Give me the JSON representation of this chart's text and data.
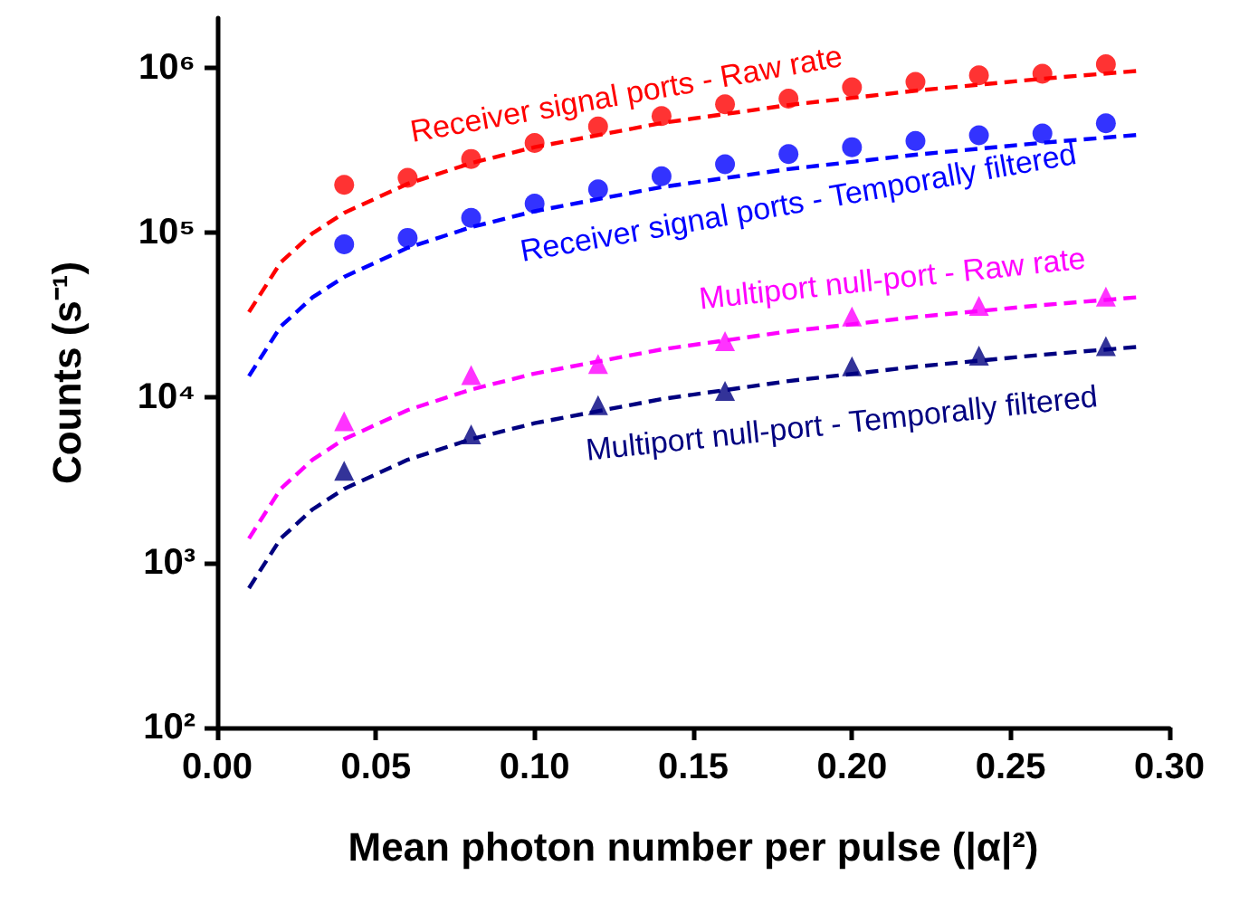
{
  "chart_data": {
    "type": "scatter",
    "xlabel": "Mean photon number per pulse (|α|²)",
    "ylabel": "Counts (s⁻¹)",
    "log": "y",
    "xlim": [
      0,
      0.3
    ],
    "xticks": [
      {
        "value": 0,
        "label": "0.00"
      },
      {
        "value": 0.05,
        "label": "0.05"
      },
      {
        "value": 0.1,
        "label": "0.10"
      },
      {
        "value": 0.15,
        "label": "0.15"
      },
      {
        "value": 0.2,
        "label": "0.20"
      },
      {
        "value": 0.25,
        "label": "0.25"
      },
      {
        "value": 0.3,
        "label": "0.30"
      }
    ],
    "ylim": [
      100,
      2000000
    ],
    "yticks": [
      {
        "value": 100,
        "label": "10²"
      },
      {
        "value": 1000,
        "label": "10³"
      },
      {
        "value": 10000,
        "label": "10⁴"
      },
      {
        "value": 100000,
        "label": "10⁵"
      },
      {
        "value": 1000000,
        "label": "10⁶"
      }
    ],
    "series": [
      {
        "marker": "circle",
        "color": "#ff0000",
        "x": [
          0.04,
          0.06,
          0.08,
          0.1,
          0.12,
          0.14,
          0.16,
          0.18,
          0.2,
          0.22,
          0.24,
          0.26,
          0.28
        ],
        "values": [
          195000,
          215000,
          280000,
          350000,
          440000,
          510000,
          600000,
          650000,
          760000,
          820000,
          900000,
          920000,
          1050000
        ]
      },
      {
        "marker": "circle",
        "color": "#0000ff",
        "x": [
          0.04,
          0.06,
          0.08,
          0.1,
          0.12,
          0.14,
          0.16,
          0.18,
          0.2,
          0.22,
          0.24,
          0.26,
          0.28
        ],
        "values": [
          85000,
          93000,
          123000,
          150000,
          183000,
          220000,
          260000,
          300000,
          330000,
          360000,
          390000,
          400000,
          460000
        ]
      },
      {
        "marker": "triangle",
        "color": "#ff00ff",
        "x": [
          0.04,
          0.08,
          0.12,
          0.16,
          0.2,
          0.24,
          0.28
        ],
        "values": [
          7200,
          13700,
          16000,
          22000,
          31000,
          36000,
          41000
        ]
      },
      {
        "marker": "triangle",
        "color": "#000080",
        "x": [
          0.04,
          0.08,
          0.12,
          0.16,
          0.2,
          0.24,
          0.28
        ],
        "values": [
          3600,
          6000,
          9000,
          11000,
          15500,
          18000,
          20500
        ]
      },
      {
        "type": "line",
        "line_style": "dashed",
        "marker": "none",
        "color": "#ff0000",
        "x": [
          0.01,
          0.02,
          0.03,
          0.04,
          0.06,
          0.08,
          0.1,
          0.14,
          0.18,
          0.22,
          0.26,
          0.29
        ],
        "values": [
          33000,
          66000,
          99000,
          132000,
          198000,
          264000,
          330000,
          462000,
          594000,
          726000,
          858000,
          957000
        ]
      },
      {
        "type": "line",
        "line_style": "dashed",
        "marker": "none",
        "color": "#0000ff",
        "x": [
          0.01,
          0.02,
          0.03,
          0.04,
          0.06,
          0.08,
          0.1,
          0.14,
          0.18,
          0.22,
          0.26,
          0.29
        ],
        "values": [
          13500,
          27000,
          40500,
          54000,
          81000,
          108000,
          135000,
          189000,
          243000,
          297000,
          351000,
          391500
        ]
      },
      {
        "type": "line",
        "line_style": "dashed",
        "marker": "none",
        "color": "#ff00ff",
        "x": [
          0.01,
          0.02,
          0.03,
          0.04,
          0.06,
          0.08,
          0.1,
          0.14,
          0.18,
          0.22,
          0.26,
          0.29
        ],
        "values": [
          1400,
          2800,
          4200,
          5600,
          8400,
          11200,
          14000,
          19600,
          25200,
          30800,
          36400,
          40600
        ]
      },
      {
        "type": "line",
        "line_style": "dashed",
        "marker": "none",
        "color": "#000080",
        "x": [
          0.01,
          0.02,
          0.03,
          0.04,
          0.06,
          0.08,
          0.1,
          0.14,
          0.18,
          0.22,
          0.26,
          0.29
        ],
        "values": [
          700,
          1400,
          2100,
          2800,
          4200,
          5600,
          7000,
          9800,
          12600,
          15400,
          18200,
          20300
        ]
      }
    ],
    "annotations": [
      "Receiver signal ports - Raw rate",
      "Receiver signal ports - Temporally filtered",
      "Multiport null-port - Raw rate",
      "Multiport null-port - Temporally filtered"
    ]
  }
}
